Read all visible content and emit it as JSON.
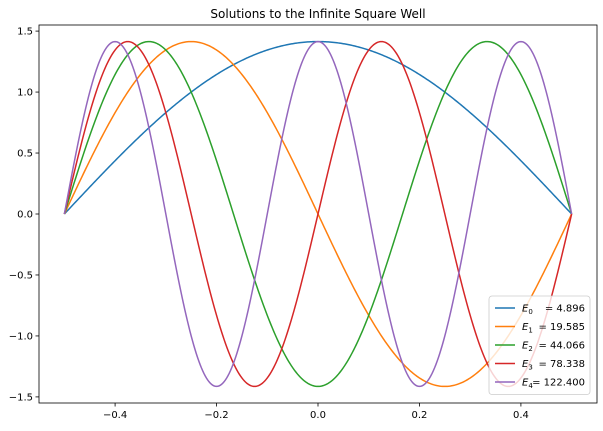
{
  "chart_data": {
    "type": "line",
    "title": "Solutions to the Infinite Square Well",
    "xlabel": "",
    "ylabel": "",
    "xlim": [
      -0.55,
      0.55
    ],
    "ylim": [
      -1.55,
      1.55
    ],
    "xticks": [
      -0.4,
      -0.2,
      0.0,
      0.2,
      0.4
    ],
    "xtick_labels": [
      "−0.4",
      "−0.2",
      "0.0",
      "0.2",
      "0.4"
    ],
    "yticks": [
      1.5,
      1.0,
      0.5,
      0.0,
      -0.5,
      -1.0,
      -1.5
    ],
    "ytick_labels": [
      "1.5",
      "1.0",
      "0.5",
      "0.0",
      "−0.5",
      "−1.0",
      "−1.5"
    ],
    "grid": false,
    "legend_position": "bottom-right",
    "domain": [
      -0.5,
      0.5
    ],
    "series": [
      {
        "name_sub": "0",
        "energy": "4.896",
        "color": "#1f77b4",
        "n": 1,
        "amplitude": 1.414
      },
      {
        "name_sub": "1",
        "energy": "19.585",
        "color": "#ff7f0e",
        "n": 2,
        "amplitude": 1.414
      },
      {
        "name_sub": "2",
        "energy": "44.066",
        "color": "#2ca02c",
        "n": 3,
        "amplitude": 1.414
      },
      {
        "name_sub": "3",
        "energy": "78.338",
        "color": "#d62728",
        "n": 4,
        "amplitude": 1.414
      },
      {
        "name_sub": "4",
        "energy": "122.400",
        "color": "#9467bd",
        "n": 5,
        "amplitude": 1.414
      }
    ]
  }
}
